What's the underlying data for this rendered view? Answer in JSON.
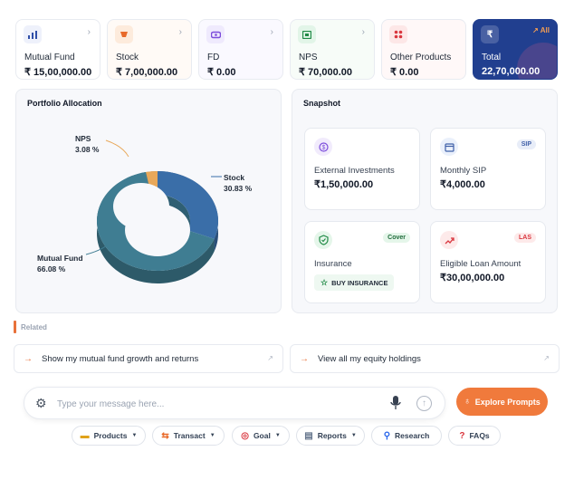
{
  "summary_cards": [
    {
      "label": "Mutual Fund",
      "value": "₹ 15,00,000.00",
      "icon": "bar-chart-icon"
    },
    {
      "label": "Stock",
      "value": "₹ 7,00,000.00",
      "icon": "stock-icon"
    },
    {
      "label": "FD",
      "value": "₹ 0.00",
      "icon": "fd-icon"
    },
    {
      "label": "NPS",
      "value": "₹ 70,000.00",
      "icon": "nps-icon"
    },
    {
      "label": "Other Products",
      "value": "₹ 0.00",
      "icon": "grid-icon"
    }
  ],
  "total_card": {
    "label": "Total",
    "value": "22,70,000.00",
    "all_label": "All",
    "icon": "rupee-icon"
  },
  "allocation": {
    "title": "Portfolio Allocation",
    "slices": [
      {
        "name": "Mutual Fund",
        "percent_label": "66.08 %",
        "value": 66.08,
        "color": "#3f7d92"
      },
      {
        "name": "Stock",
        "percent_label": "30.83 %",
        "value": 30.83,
        "color": "#3a6ea8"
      },
      {
        "name": "NPS",
        "percent_label": "3.08 %",
        "value": 3.08,
        "color": "#e8a85a"
      }
    ]
  },
  "snapshot": {
    "title": "Snapshot",
    "items": [
      {
        "label": "External Investments",
        "value": "₹1,50,000.00",
        "icon": "dollar-circle-icon"
      },
      {
        "label": "Monthly SIP",
        "value": "₹4,000.00",
        "tag": "SIP",
        "icon": "calendar-icon"
      },
      {
        "label": "Insurance",
        "tag": "Cover",
        "button": "BUY INSURANCE",
        "icon": "shield-icon"
      },
      {
        "label": "Eligible Loan Amount",
        "value": "₹30,00,000.00",
        "tag": "LAS",
        "icon": "trend-up-icon"
      }
    ]
  },
  "related": {
    "heading": "Related",
    "suggestions": [
      "Show my mutual fund growth and returns",
      "View all my equity holdings"
    ]
  },
  "chat": {
    "placeholder": "Type your message here..."
  },
  "explore_button": "Explore Prompts",
  "chips": [
    {
      "label": "Products",
      "dropdown": true
    },
    {
      "label": "Transact",
      "dropdown": true
    },
    {
      "label": "Goal",
      "dropdown": true
    },
    {
      "label": "Reports",
      "dropdown": true
    },
    {
      "label": "Research",
      "dropdown": false
    },
    {
      "label": "FAQs",
      "dropdown": false
    }
  ],
  "colors": {
    "accent": "#f07a3c",
    "total_bg": "#213f8f"
  }
}
